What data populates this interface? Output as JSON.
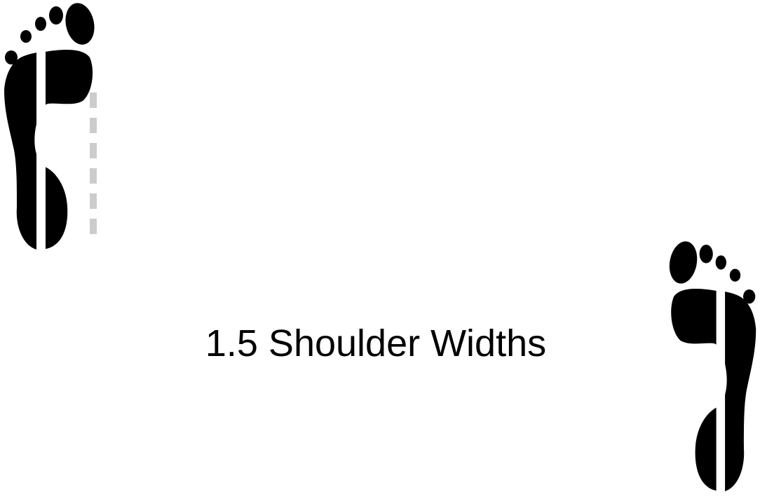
{
  "diagram": {
    "caption": "1.5 Shoulder Widths",
    "icons": {
      "left_foot": "left-footprint-icon",
      "right_foot": "right-footprint-icon",
      "guide": "dashed-guide-line"
    },
    "colors": {
      "foot": "#000000",
      "guide": "#cccccc",
      "background": "#ffffff"
    }
  }
}
